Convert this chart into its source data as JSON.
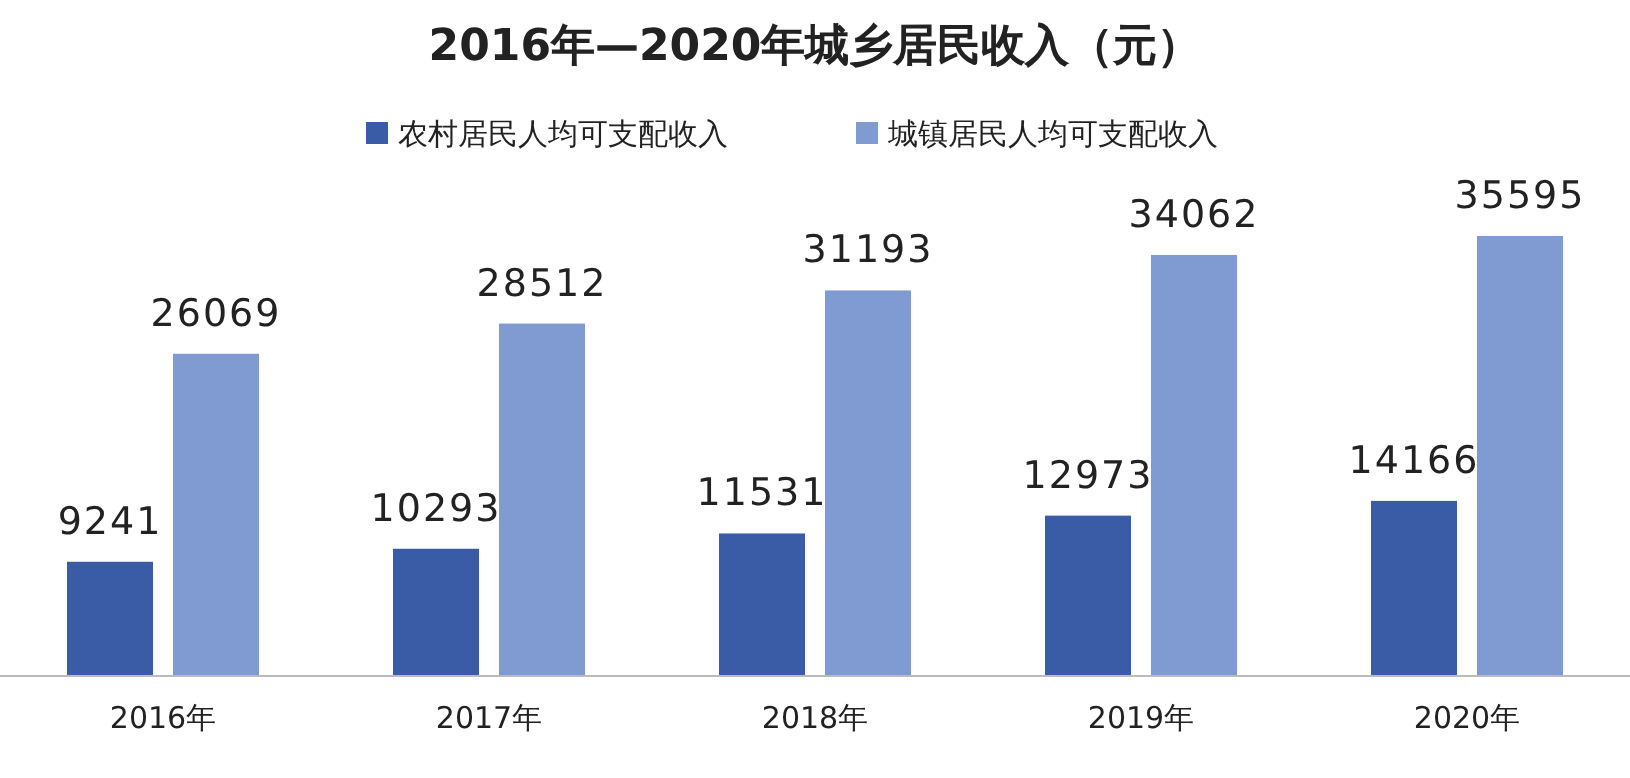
{
  "chart_data": {
    "type": "bar",
    "title": "2016年—2020年城乡居民收入（元）",
    "categories": [
      "2016年",
      "2017年",
      "2018年",
      "2019年",
      "2020年"
    ],
    "series": [
      {
        "name": "农村居民人均可支配收入",
        "color": "#3a5ca6",
        "values": [
          9241,
          10293,
          11531,
          12973,
          14166
        ]
      },
      {
        "name": "城镇居民人均可支配收入",
        "color": "#7f9bd2",
        "values": [
          26069,
          28512,
          31193,
          34062,
          35595
        ]
      }
    ],
    "data_labels": true,
    "legend": "top",
    "grid": false
  }
}
